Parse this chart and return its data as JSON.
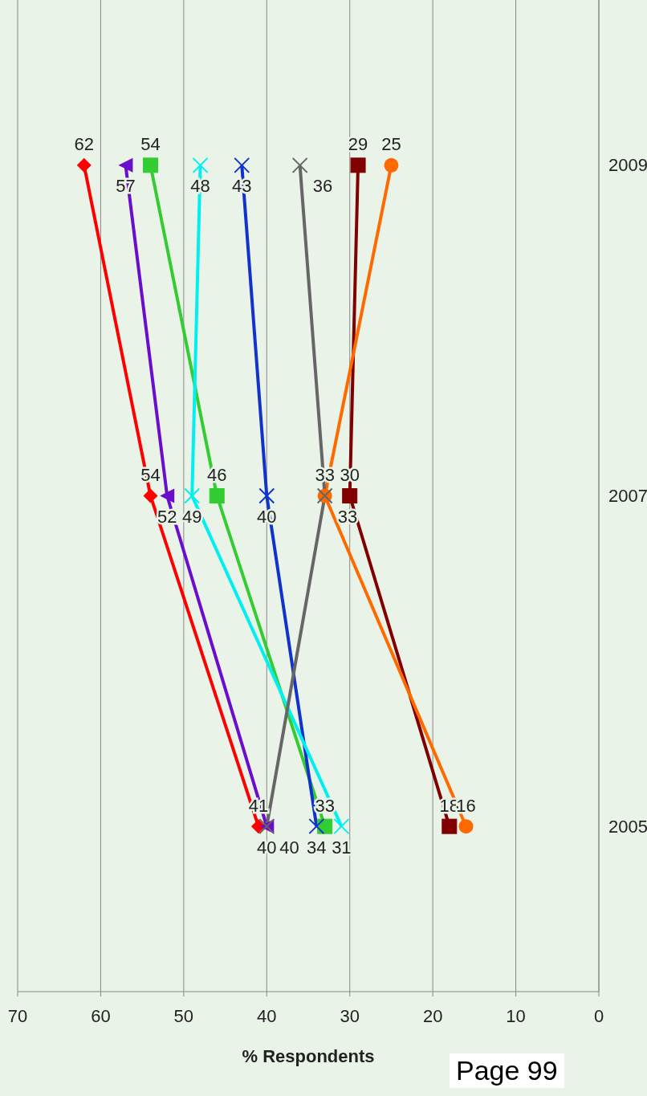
{
  "chart_data": {
    "type": "line",
    "orientation": "horizontal",
    "xlabel": "% Respondents",
    "categories": [
      "2009",
      "2007",
      "2005"
    ],
    "series": [
      {
        "color": "#ff0000",
        "marker": "diamond",
        "values": [
          62,
          54,
          41
        ]
      },
      {
        "color": "#6a0dcc",
        "marker": "triangle",
        "values": [
          57,
          52,
          40
        ]
      },
      {
        "color": "#33cc33",
        "marker": "square",
        "values": [
          54,
          46,
          33
        ]
      },
      {
        "color": "#1133cc",
        "marker": "cross",
        "values": [
          43,
          40,
          34
        ]
      },
      {
        "color": "#800000",
        "marker": "square",
        "values": [
          29,
          30,
          18
        ]
      },
      {
        "color": "#00f0f0",
        "marker": "cross",
        "values": [
          48,
          49,
          31
        ]
      },
      {
        "color": "#ff6a00",
        "marker": "circle",
        "values": [
          25,
          33,
          16
        ]
      },
      {
        "color": "#666666",
        "marker": "cross",
        "values": [
          36,
          33,
          40
        ]
      }
    ],
    "xlim": [
      70,
      0
    ],
    "xticks": [
      0,
      10,
      20,
      30,
      40,
      50,
      60,
      70
    ],
    "grid": "x",
    "legend": false,
    "data_labels": true,
    "annotations": [
      "Page 99"
    ]
  }
}
